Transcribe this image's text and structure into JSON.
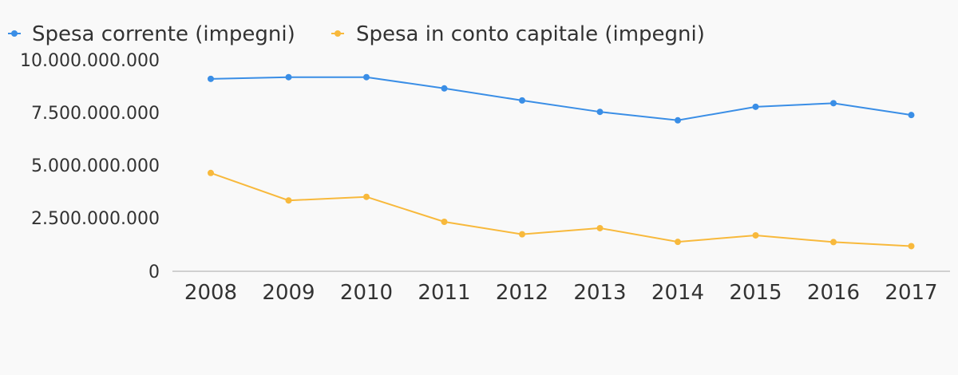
{
  "chart_data": {
    "type": "line",
    "categories": [
      "2008",
      "2009",
      "2010",
      "2011",
      "2012",
      "2013",
      "2014",
      "2015",
      "2016",
      "2017"
    ],
    "series": [
      {
        "name": "Spesa corrente (impegni)",
        "color": "#3a8ee6",
        "values": [
          9100000000,
          9180000000,
          9180000000,
          8650000000,
          8080000000,
          7540000000,
          7140000000,
          7780000000,
          7950000000,
          7390000000
        ]
      },
      {
        "name": "Spesa in conto capitale (impegni)",
        "color": "#f8b93c",
        "values": [
          4650000000,
          3350000000,
          3520000000,
          2340000000,
          1750000000,
          2040000000,
          1390000000,
          1700000000,
          1380000000,
          1190000000
        ]
      }
    ],
    "y_ticks": [
      "10.000.000.000",
      "7.500.000.000",
      "5.000.000.000",
      "2.500.000.000",
      "0"
    ],
    "ylim": [
      0,
      10000000000
    ],
    "legend_position": "top-left",
    "grid": false
  }
}
